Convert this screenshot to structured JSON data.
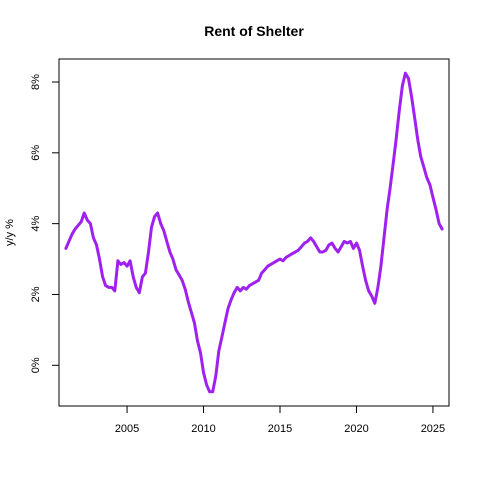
{
  "chart_data": {
    "type": "line",
    "title": "Rent of Shelter",
    "xlabel": "",
    "ylabel": "y/y %",
    "xlim": [
      2000.55,
      2026.05
    ],
    "ylim": [
      -1.15,
      8.65
    ],
    "x_ticks": [
      2005,
      2010,
      2015,
      2020,
      2025
    ],
    "x_tick_labels": [
      "2005",
      "2010",
      "2015",
      "2020",
      "2025"
    ],
    "y_ticks": [
      0,
      2,
      4,
      6,
      8
    ],
    "y_tick_labels": [
      "0%",
      "2%",
      "4%",
      "6%",
      "8%"
    ],
    "grid": false,
    "line_color": "#A020F0",
    "series": [
      {
        "name": "",
        "points": [
          [
            2001.0,
            3.3
          ],
          [
            2001.2,
            3.5
          ],
          [
            2001.4,
            3.7
          ],
          [
            2001.6,
            3.85
          ],
          [
            2001.8,
            3.95
          ],
          [
            2002.0,
            4.05
          ],
          [
            2002.2,
            4.3
          ],
          [
            2002.4,
            4.1
          ],
          [
            2002.6,
            4.0
          ],
          [
            2002.8,
            3.6
          ],
          [
            2003.0,
            3.4
          ],
          [
            2003.2,
            3.0
          ],
          [
            2003.4,
            2.5
          ],
          [
            2003.6,
            2.25
          ],
          [
            2003.8,
            2.2
          ],
          [
            2004.0,
            2.2
          ],
          [
            2004.2,
            2.1
          ],
          [
            2004.4,
            2.95
          ],
          [
            2004.6,
            2.85
          ],
          [
            2004.8,
            2.9
          ],
          [
            2005.0,
            2.8
          ],
          [
            2005.2,
            2.95
          ],
          [
            2005.4,
            2.5
          ],
          [
            2005.6,
            2.2
          ],
          [
            2005.8,
            2.05
          ],
          [
            2006.0,
            2.5
          ],
          [
            2006.2,
            2.6
          ],
          [
            2006.4,
            3.2
          ],
          [
            2006.6,
            3.9
          ],
          [
            2006.8,
            4.2
          ],
          [
            2007.0,
            4.3
          ],
          [
            2007.2,
            4.0
          ],
          [
            2007.4,
            3.8
          ],
          [
            2007.6,
            3.5
          ],
          [
            2007.8,
            3.2
          ],
          [
            2008.0,
            3.0
          ],
          [
            2008.2,
            2.7
          ],
          [
            2008.4,
            2.55
          ],
          [
            2008.6,
            2.4
          ],
          [
            2008.8,
            2.15
          ],
          [
            2009.0,
            1.8
          ],
          [
            2009.2,
            1.5
          ],
          [
            2009.4,
            1.2
          ],
          [
            2009.6,
            0.7
          ],
          [
            2009.8,
            0.35
          ],
          [
            2010.0,
            -0.2
          ],
          [
            2010.2,
            -0.55
          ],
          [
            2010.4,
            -0.75
          ],
          [
            2010.6,
            -0.75
          ],
          [
            2010.8,
            -0.3
          ],
          [
            2011.0,
            0.4
          ],
          [
            2011.2,
            0.8
          ],
          [
            2011.4,
            1.2
          ],
          [
            2011.6,
            1.6
          ],
          [
            2011.8,
            1.85
          ],
          [
            2012.0,
            2.05
          ],
          [
            2012.2,
            2.2
          ],
          [
            2012.4,
            2.1
          ],
          [
            2012.6,
            2.2
          ],
          [
            2012.8,
            2.15
          ],
          [
            2013.0,
            2.25
          ],
          [
            2013.2,
            2.3
          ],
          [
            2013.4,
            2.35
          ],
          [
            2013.6,
            2.4
          ],
          [
            2013.8,
            2.6
          ],
          [
            2014.0,
            2.7
          ],
          [
            2014.2,
            2.8
          ],
          [
            2014.4,
            2.85
          ],
          [
            2014.6,
            2.9
          ],
          [
            2014.8,
            2.95
          ],
          [
            2015.0,
            3.0
          ],
          [
            2015.2,
            2.95
          ],
          [
            2015.4,
            3.05
          ],
          [
            2015.6,
            3.1
          ],
          [
            2015.8,
            3.15
          ],
          [
            2016.0,
            3.2
          ],
          [
            2016.2,
            3.25
          ],
          [
            2016.4,
            3.35
          ],
          [
            2016.6,
            3.45
          ],
          [
            2016.8,
            3.5
          ],
          [
            2017.0,
            3.6
          ],
          [
            2017.2,
            3.5
          ],
          [
            2017.4,
            3.35
          ],
          [
            2017.6,
            3.2
          ],
          [
            2017.8,
            3.2
          ],
          [
            2018.0,
            3.25
          ],
          [
            2018.2,
            3.4
          ],
          [
            2018.4,
            3.45
          ],
          [
            2018.6,
            3.3
          ],
          [
            2018.8,
            3.2
          ],
          [
            2019.0,
            3.35
          ],
          [
            2019.2,
            3.5
          ],
          [
            2019.4,
            3.45
          ],
          [
            2019.6,
            3.5
          ],
          [
            2019.8,
            3.3
          ],
          [
            2020.0,
            3.45
          ],
          [
            2020.2,
            3.25
          ],
          [
            2020.4,
            2.8
          ],
          [
            2020.6,
            2.4
          ],
          [
            2020.8,
            2.1
          ],
          [
            2021.0,
            1.95
          ],
          [
            2021.2,
            1.75
          ],
          [
            2021.4,
            2.2
          ],
          [
            2021.6,
            2.8
          ],
          [
            2021.8,
            3.6
          ],
          [
            2022.0,
            4.4
          ],
          [
            2022.2,
            5.0
          ],
          [
            2022.4,
            5.7
          ],
          [
            2022.6,
            6.4
          ],
          [
            2022.8,
            7.2
          ],
          [
            2023.0,
            7.9
          ],
          [
            2023.2,
            8.25
          ],
          [
            2023.4,
            8.1
          ],
          [
            2023.6,
            7.6
          ],
          [
            2023.8,
            7.0
          ],
          [
            2024.0,
            6.4
          ],
          [
            2024.2,
            5.9
          ],
          [
            2024.4,
            5.6
          ],
          [
            2024.6,
            5.3
          ],
          [
            2024.8,
            5.1
          ],
          [
            2025.0,
            4.75
          ],
          [
            2025.2,
            4.4
          ],
          [
            2025.4,
            4.0
          ],
          [
            2025.6,
            3.85
          ]
        ]
      }
    ]
  }
}
